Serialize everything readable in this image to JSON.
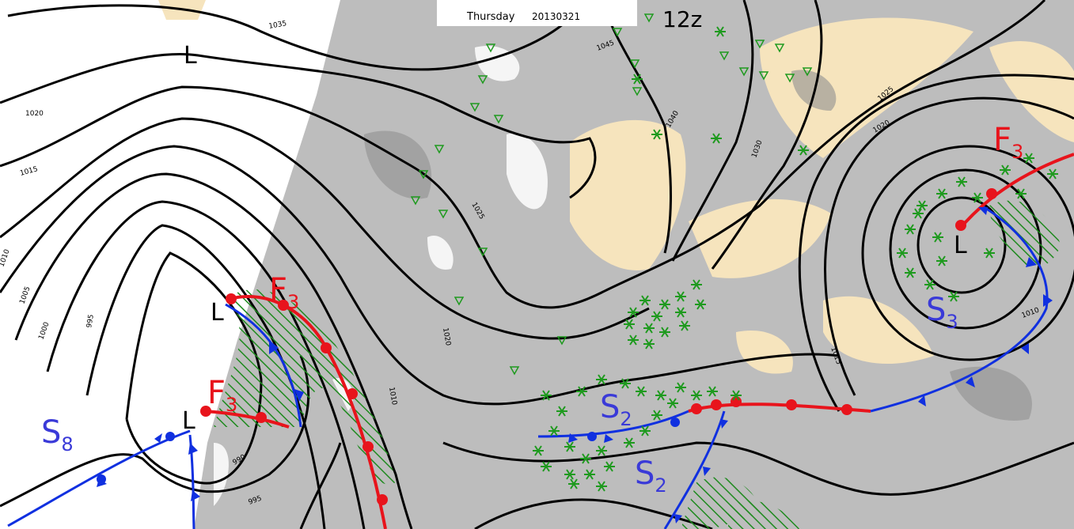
{
  "header": {
    "day": "Thursday",
    "date": "20130321",
    "run": "12z"
  },
  "pressure_centers": [
    "L",
    "L",
    "L",
    "L"
  ],
  "fronts": [
    {
      "letter": "F",
      "index": "3"
    },
    {
      "letter": "F",
      "index": "3"
    },
    {
      "letter": "F",
      "index": "3"
    },
    {
      "letter": "S",
      "index": "3"
    },
    {
      "letter": "S",
      "index": "2"
    },
    {
      "letter": "S",
      "index": "2"
    },
    {
      "letter": "S",
      "index": "8"
    }
  ],
  "isobar_labels": [
    "1035",
    "1045",
    "1020",
    "1015",
    "1010",
    "1005",
    "1000",
    "995",
    "990",
    "995",
    "1025",
    "1040",
    "1030",
    "1025",
    "1020",
    "1010",
    "1015",
    "1020",
    "1010"
  ]
}
